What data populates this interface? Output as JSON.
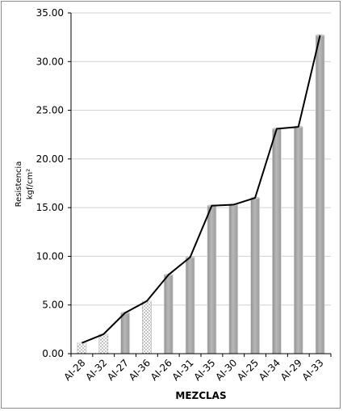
{
  "chart_data": {
    "type": "bar",
    "title": "",
    "xlabel": "MEZCLAS",
    "ylabel_line1": "Resistencia",
    "ylabel_line2": "kgf/cm²",
    "ylim": [
      0,
      35
    ],
    "yticks": [
      "0.00",
      "5.00",
      "10.00",
      "15.00",
      "20.00",
      "25.00",
      "30.00",
      "35.00"
    ],
    "grid": true,
    "legend": "none",
    "categories": [
      "AI-28",
      "AI-32",
      "AI-27",
      "AI-36",
      "AI-26",
      "AI-31",
      "AI-35",
      "AI-30",
      "AI-25",
      "AI-34",
      "AI-29",
      "AI-33"
    ],
    "values": [
      1.1,
      2.0,
      4.2,
      5.4,
      8.1,
      9.9,
      15.2,
      15.3,
      16.0,
      23.1,
      23.3,
      32.7
    ],
    "bar_styles": [
      "dotted",
      "dotted",
      "solid",
      "dotted",
      "solid",
      "solid",
      "solid",
      "solid",
      "solid",
      "solid",
      "solid",
      "solid"
    ],
    "overlay_line": true,
    "colors": {
      "bar": "#a6a6a6",
      "bar_edge": "#d9d9d9",
      "line": "#000000",
      "grid": "#d0d0d0",
      "dotted_fill": "#ffffff",
      "dotted_pattern": "#7f7f7f"
    }
  }
}
